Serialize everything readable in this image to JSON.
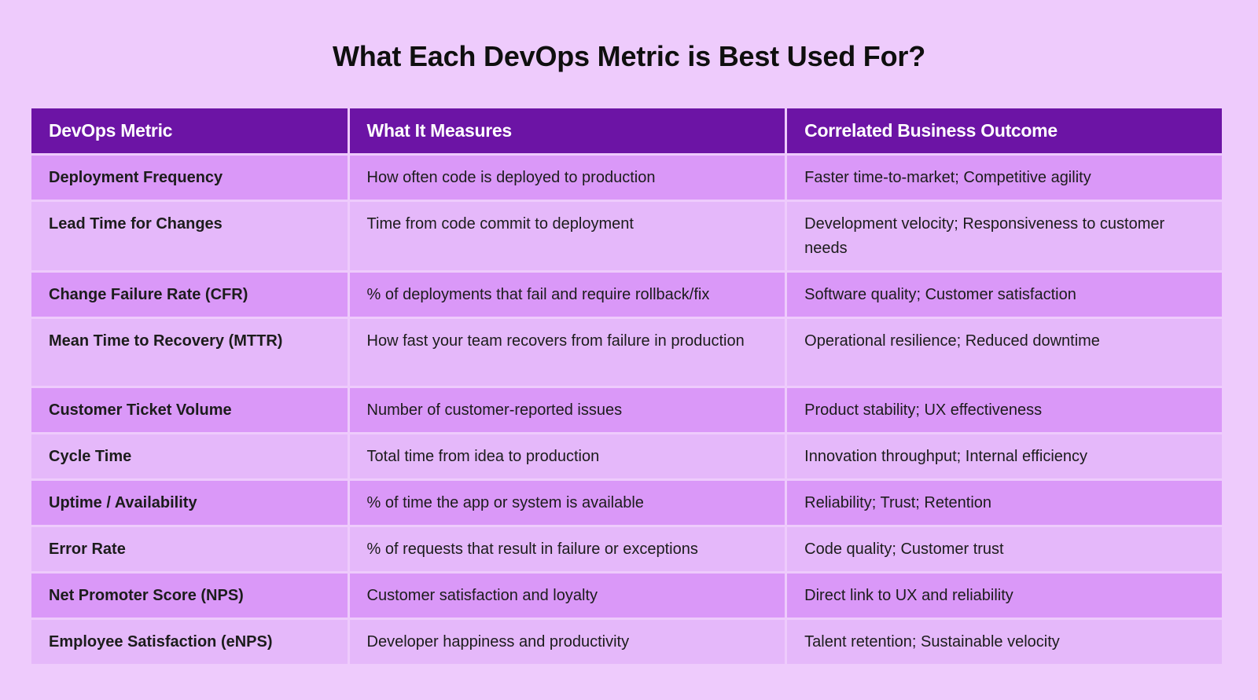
{
  "title": "What Each DevOps Metric is Best Used For?",
  "columns": [
    "DevOps Metric",
    "What It Measures",
    "Correlated Business Outcome"
  ],
  "rows": [
    {
      "metric": "Deployment Frequency",
      "measures": "How often code is deployed to production",
      "outcome": "Faster time-to-market; Competitive agility"
    },
    {
      "metric": "Lead Time for Changes",
      "measures": "Time from code commit to deployment",
      "outcome": "Development velocity; Responsiveness to customer needs"
    },
    {
      "metric": "Change Failure Rate (CFR)",
      "measures": "% of deployments that fail and require rollback/fix",
      "outcome": "Software quality; Customer satisfaction"
    },
    {
      "metric": "Mean Time to Recovery (MTTR)",
      "measures": "How fast your team recovers from failure in production",
      "outcome": "Operational resilience; Reduced downtime"
    },
    {
      "metric": "Customer Ticket Volume",
      "measures": "Number of customer-reported issues",
      "outcome": "Product stability; UX effectiveness"
    },
    {
      "metric": "Cycle Time",
      "measures": "Total time from idea to production",
      "outcome": "Innovation throughput; Internal efficiency"
    },
    {
      "metric": "Uptime / Availability",
      "measures": "% of time the app or system is available",
      "outcome": "Reliability; Trust; Retention"
    },
    {
      "metric": "Error Rate",
      "measures": "% of requests that result in failure or exceptions",
      "outcome": "Code quality; Customer trust"
    },
    {
      "metric": "Net Promoter Score (NPS)",
      "measures": "Customer satisfaction and loyalty",
      "outcome": "Direct link to UX and reliability"
    },
    {
      "metric": "Employee Satisfaction (eNPS)",
      "measures": "Developer happiness and productivity",
      "outcome": "Talent retention; Sustainable velocity"
    }
  ],
  "colors": {
    "background": "#eecbfc",
    "header": "#6c14a5",
    "row_odd": "#da98f8",
    "row_even": "#e5b8fa"
  }
}
